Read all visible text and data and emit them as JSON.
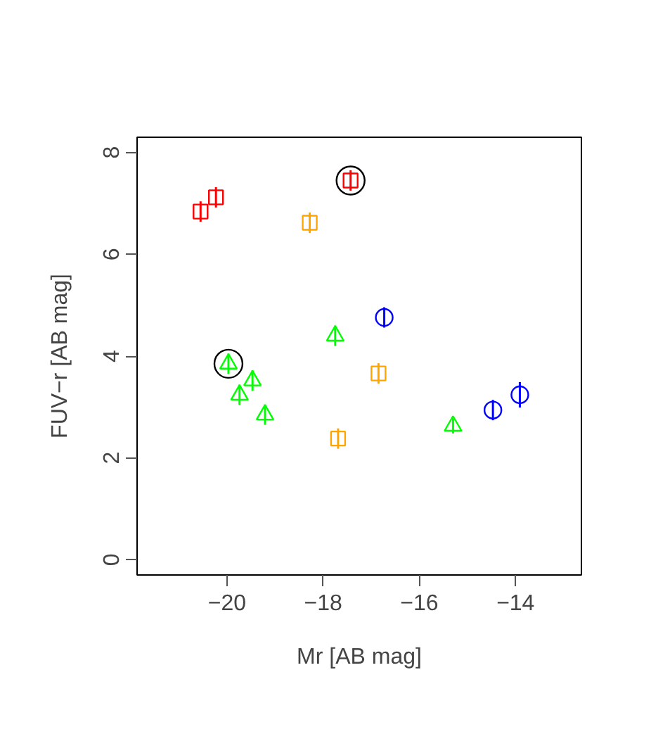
{
  "chart_data": {
    "type": "scatter",
    "xlabel": "Mr [AB mag]",
    "ylabel": "FUV−r [AB mag]",
    "xlim": [
      -21.87,
      -12.63
    ],
    "ylim": [
      -0.3,
      8.3
    ],
    "xticks": [
      -20,
      -18,
      -16,
      -14
    ],
    "yticks": [
      0,
      2,
      4,
      6,
      8
    ],
    "grid": false,
    "series": [
      {
        "color": "#ff0000",
        "marker": "square",
        "x": [
          -20.55,
          -20.23,
          -17.43
        ],
        "values": [
          6.84,
          7.12,
          7.45
        ],
        "errors": [
          0.2,
          0.2,
          0.2
        ]
      },
      {
        "color": "#ffa500",
        "marker": "square",
        "x": [
          -18.28,
          -16.85,
          -17.69
        ],
        "values": [
          6.62,
          3.66,
          2.38
        ],
        "errors": [
          0.2,
          0.2,
          0.2
        ]
      },
      {
        "color": "#00ff00",
        "marker": "triangle",
        "x": [
          -19.97,
          -19.47,
          -19.74,
          -19.21,
          -17.75,
          -15.3
        ],
        "values": [
          3.85,
          3.52,
          3.24,
          2.85,
          4.4,
          2.63
        ],
        "errors": [
          0.2,
          0.2,
          0.2,
          0.2,
          0.2,
          0.15
        ]
      },
      {
        "color": "#0000ff",
        "marker": "circle",
        "x": [
          -16.73,
          -14.47,
          -13.91
        ],
        "values": [
          4.76,
          2.94,
          3.24
        ],
        "errors": [
          0.2,
          0.2,
          0.25
        ]
      },
      {
        "color": "#000000",
        "marker": "circle",
        "x": [
          -19.97,
          -17.43
        ],
        "values": [
          3.85,
          7.45
        ]
      }
    ]
  }
}
